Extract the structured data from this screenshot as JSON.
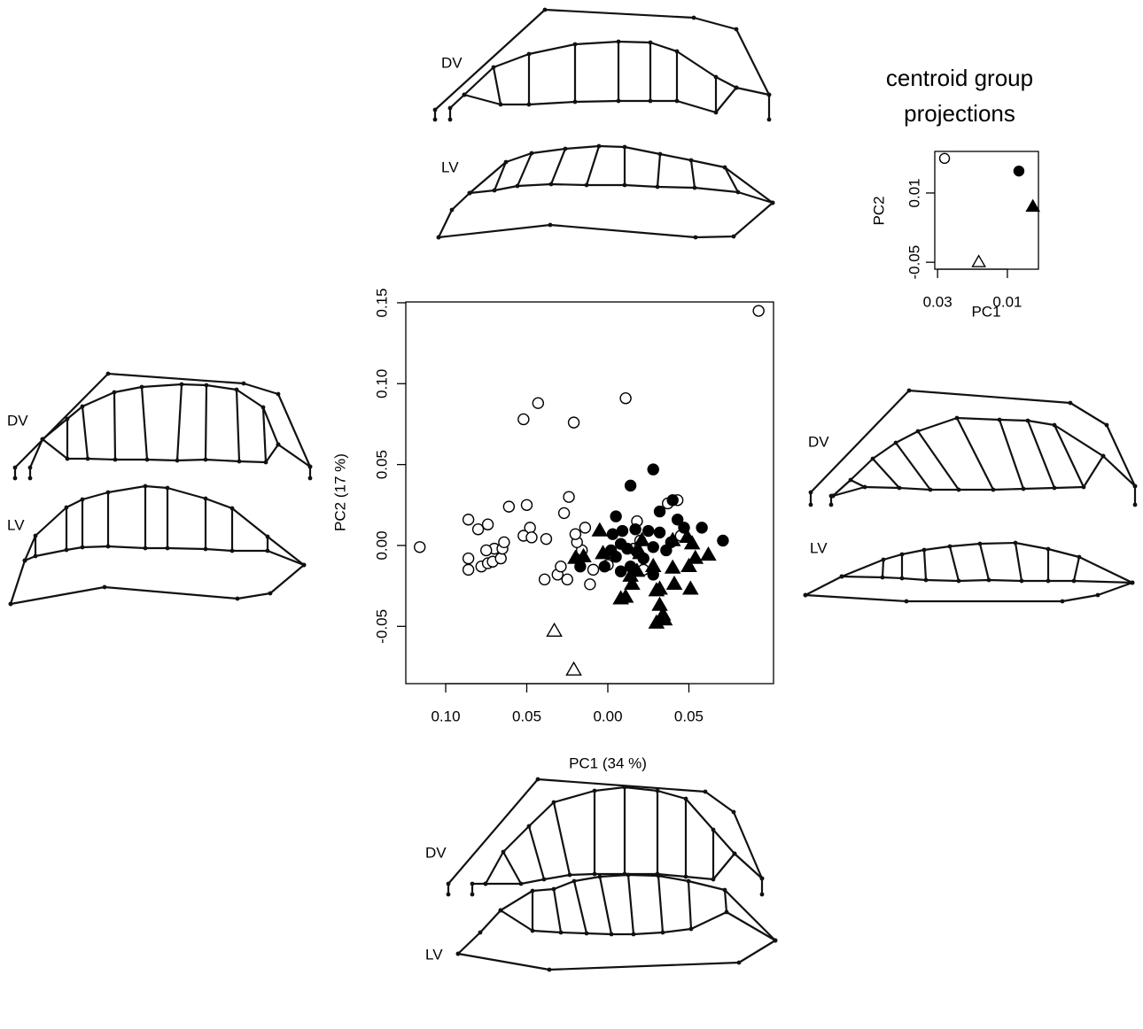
{
  "chart_data": [
    {
      "type": "scatter",
      "xlabel": "PC1 (34 %)",
      "ylabel": "PC2 (17 %)",
      "xlim": [
        -0.1246,
        0.1022
      ],
      "ylim": [
        -0.0854,
        0.1505
      ],
      "xticks": [
        {
          "value": -0.1,
          "label": "0.10"
        },
        {
          "value": -0.05,
          "label": "0.05"
        },
        {
          "value": 0,
          "label": "0.00"
        },
        0.05
      ],
      "yticks": [
        -0.05,
        {
          "value": 0,
          "label": "0.00"
        },
        0.05,
        {
          "value": 0.1,
          "label": "0.10"
        },
        0.15
      ],
      "series": [
        {
          "marker": "circle",
          "filled": false,
          "color": "#000000",
          "x": [
            0.093,
            0.011,
            -0.043,
            -0.021,
            -0.052,
            -0.116,
            -0.086,
            -0.074,
            -0.08,
            -0.061,
            -0.05,
            -0.024,
            -0.027,
            -0.048,
            -0.052,
            -0.047,
            -0.038,
            -0.086,
            -0.086,
            -0.078,
            -0.074,
            -0.07,
            -0.075,
            -0.071,
            -0.066,
            -0.065,
            -0.064,
            -0.039,
            -0.031,
            -0.029,
            -0.025,
            -0.016,
            -0.011,
            -0.009,
            0.0,
            -0.014,
            -0.019,
            -0.02,
            0.016,
            0.02,
            0.037,
            0.043,
            0.045,
            0.018,
            0.022
          ],
          "y": [
            0.145,
            0.091,
            0.088,
            0.076,
            0.078,
            -0.001,
            0.016,
            0.013,
            0.01,
            0.024,
            0.025,
            0.03,
            0.02,
            0.011,
            0.006,
            0.005,
            0.004,
            -0.008,
            -0.015,
            -0.013,
            -0.011,
            -0.002,
            -0.003,
            -0.01,
            -0.008,
            -0.002,
            0.002,
            -0.021,
            -0.018,
            -0.013,
            -0.021,
            -0.003,
            -0.024,
            -0.015,
            -0.012,
            0.011,
            0.002,
            0.007,
            -0.002,
            0.003,
            0.026,
            0.028,
            0.006,
            0.015,
            -0.015
          ]
        },
        {
          "marker": "circle",
          "filled": true,
          "color": "#000000",
          "x": [
            0.028,
            0.014,
            0.032,
            0.043,
            0.04,
            0.005,
            0.047,
            0.058,
            0.071,
            0.003,
            0.009,
            0.017,
            0.025,
            0.032,
            0.039,
            0.008,
            0.012,
            0.018,
            0.028,
            0.036,
            -0.002,
            0.005,
            0.008,
            0.014,
            0.028,
            -0.017,
            0.002,
            0.022
          ],
          "y": [
            0.047,
            0.037,
            0.021,
            0.016,
            0.028,
            0.018,
            0.011,
            0.011,
            0.003,
            0.007,
            0.009,
            0.01,
            0.009,
            0.008,
            0.002,
            0.001,
            -0.002,
            -0.004,
            -0.001,
            -0.003,
            -0.013,
            -0.007,
            -0.016,
            -0.013,
            -0.018,
            -0.013,
            -0.003,
            -0.008
          ]
        },
        {
          "marker": "triangle",
          "filled": true,
          "color": "#000000",
          "x": [
            -0.005,
            -0.003,
            -0.02,
            -0.015,
            0.008,
            0.011,
            0.015,
            0.018,
            0.02,
            0.03,
            0.032,
            0.032,
            0.034,
            0.03,
            0.035,
            0.028,
            0.04,
            0.041,
            0.051,
            0.05,
            0.052,
            0.054,
            0.062,
            0.049,
            0.04,
            0.021,
            0.014
          ],
          "y": [
            0.009,
            -0.005,
            -0.008,
            -0.007,
            -0.033,
            -0.032,
            -0.024,
            -0.016,
            -0.005,
            -0.028,
            -0.027,
            -0.037,
            -0.043,
            -0.048,
            -0.046,
            -0.013,
            -0.014,
            -0.024,
            -0.027,
            -0.013,
            0.001,
            -0.008,
            -0.006,
            0.005,
            0.003,
            0.003,
            -0.019
          ]
        },
        {
          "marker": "triangle",
          "filled": false,
          "color": "#000000",
          "x": [
            -0.033,
            -0.021
          ],
          "y": [
            -0.053,
            -0.077
          ]
        }
      ]
    },
    {
      "type": "scatter",
      "title": [
        "centroid group",
        "projections"
      ],
      "xlabel": "PC1",
      "ylabel": "PC2",
      "xlim": [
        -0.0308,
        -0.0011
      ],
      "ylim": [
        -0.056,
        0.046
      ],
      "xticks": [
        {
          "value": -0.03,
          "label": "0.03"
        },
        {
          "value": -0.01,
          "label": "0.01"
        }
      ],
      "yticks": [
        0.01,
        -0.05
      ],
      "series": [
        {
          "marker": "circle",
          "filled": false,
          "color": "#000000",
          "x": [
            -0.028
          ],
          "y": [
            0.04
          ]
        },
        {
          "marker": "circle",
          "filled": true,
          "color": "#000000",
          "x": [
            -0.0067
          ],
          "y": [
            0.029
          ]
        },
        {
          "marker": "triangle",
          "filled": true,
          "color": "#000000",
          "x": [
            -0.0027
          ],
          "y": [
            -0.002
          ]
        },
        {
          "marker": "triangle",
          "filled": false,
          "color": "#000000",
          "x": [
            -0.0182
          ],
          "y": [
            -0.05
          ]
        }
      ]
    }
  ],
  "diagram_labels": [
    "DV",
    "LV",
    "DV",
    "LV",
    "DV",
    "LV",
    "DV",
    "LV"
  ]
}
